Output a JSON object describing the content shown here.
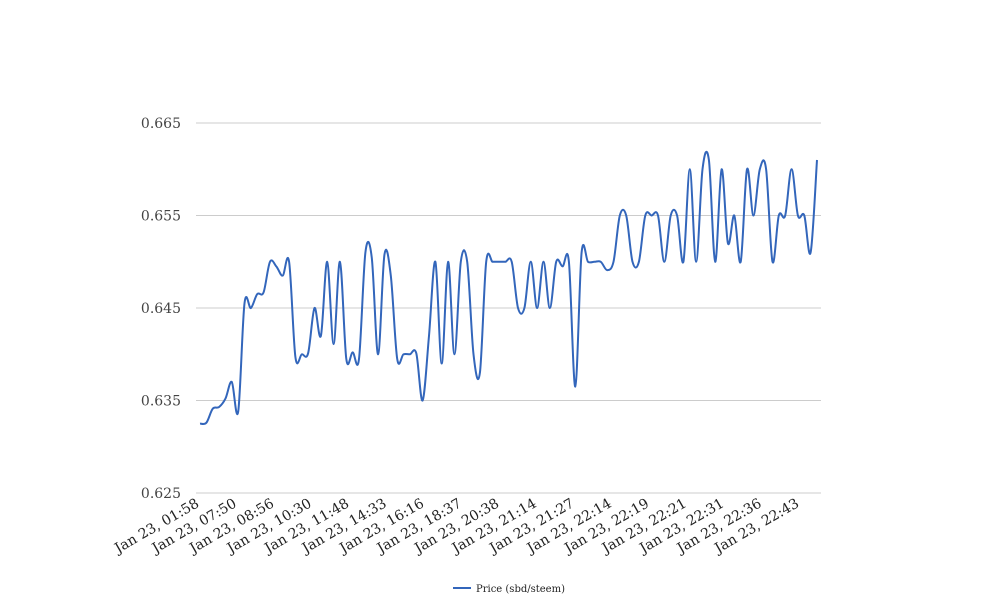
{
  "chart_data": {
    "type": "line",
    "title": "",
    "xlabel": "",
    "ylabel": "",
    "ylim": [
      0.625,
      0.665
    ],
    "yticks": [
      "0.625",
      "0.635",
      "0.645",
      "0.655",
      "0.665"
    ],
    "grid": true,
    "legend_position": "bottom",
    "series_color": "#3366bb",
    "x_tick_labels": [
      "Jan 23, 01:58",
      "Jan 23, 07:50",
      "Jan 23, 08:56",
      "Jan 23, 10:30",
      "Jan 23, 11:48",
      "Jan 23, 14:33",
      "Jan 23, 16:16",
      "Jan 23, 18:37",
      "Jan 23, 20:38",
      "Jan 23, 21:14",
      "Jan 23, 21:27",
      "Jan 23, 22:14",
      "Jan 23, 22:19",
      "Jan 23, 22:21",
      "Jan 23, 22:31",
      "Jan 23, 22:36",
      "Jan 23, 22:43"
    ],
    "series": [
      {
        "name": "Price (sbd/steem)",
        "values": [
          0.6325,
          0.6326,
          0.6341,
          0.6343,
          0.6352,
          0.637,
          0.6338,
          0.6455,
          0.645,
          0.6465,
          0.6467,
          0.65,
          0.6495,
          0.6485,
          0.65,
          0.6397,
          0.64,
          0.6401,
          0.645,
          0.642,
          0.65,
          0.6411,
          0.65,
          0.6395,
          0.6402,
          0.6395,
          0.651,
          0.6505,
          0.64,
          0.6508,
          0.6485,
          0.6395,
          0.64,
          0.64,
          0.6401,
          0.635,
          0.642,
          0.65,
          0.639,
          0.65,
          0.64,
          0.65,
          0.65,
          0.64,
          0.638,
          0.65,
          0.65,
          0.65,
          0.65,
          0.65,
          0.645,
          0.645,
          0.65,
          0.645,
          0.65,
          0.645,
          0.65,
          0.6495,
          0.65,
          0.6365,
          0.651,
          0.65,
          0.65,
          0.65,
          0.6491,
          0.65,
          0.655,
          0.655,
          0.65,
          0.65,
          0.655,
          0.655,
          0.655,
          0.65,
          0.655,
          0.655,
          0.65,
          0.66,
          0.65,
          0.66,
          0.661,
          0.65,
          0.66,
          0.652,
          0.655,
          0.65,
          0.66,
          0.655,
          0.66,
          0.66,
          0.65,
          0.655,
          0.655,
          0.66,
          0.655,
          0.655,
          0.651,
          0.661
        ]
      }
    ]
  }
}
